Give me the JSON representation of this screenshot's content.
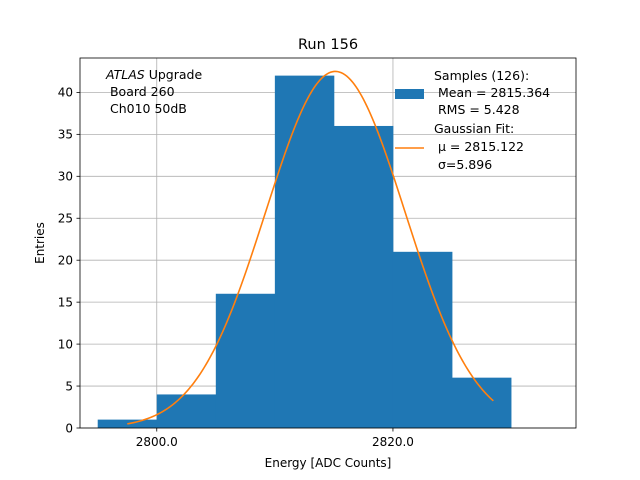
{
  "chart_data": {
    "type": "bar",
    "title": "Run 156",
    "xlabel": "Energy [ADC Counts]",
    "ylabel": "Entries",
    "xlim": [
      2793.5,
      2835.5
    ],
    "ylim": [
      0,
      44.1
    ],
    "grid": true,
    "x_ticks": [
      {
        "value": 2800,
        "label": "2800.0"
      },
      {
        "value": 2820,
        "label": "2820.0"
      }
    ],
    "y_ticks": [
      {
        "value": 0,
        "label": "0"
      },
      {
        "value": 5,
        "label": "5"
      },
      {
        "value": 10,
        "label": "10"
      },
      {
        "value": 15,
        "label": "15"
      },
      {
        "value": 20,
        "label": "20"
      },
      {
        "value": 25,
        "label": "25"
      },
      {
        "value": 30,
        "label": "30"
      },
      {
        "value": 35,
        "label": "35"
      },
      {
        "value": 40,
        "label": "40"
      }
    ],
    "bins": [
      {
        "x0": 2795,
        "x1": 2800,
        "count": 1
      },
      {
        "x0": 2800,
        "x1": 2805,
        "count": 4
      },
      {
        "x0": 2805,
        "x1": 2810,
        "count": 16
      },
      {
        "x0": 2810,
        "x1": 2815,
        "count": 42
      },
      {
        "x0": 2815,
        "x1": 2820,
        "count": 36
      },
      {
        "x0": 2820,
        "x1": 2825,
        "count": 21
      },
      {
        "x0": 2825,
        "x1": 2830,
        "count": 6
      }
    ],
    "fit": {
      "type": "gaussian",
      "mu": 2815.122,
      "sigma": 5.896,
      "amplitude": 42.5,
      "x_range": [
        2797.5,
        2828.5
      ]
    },
    "series_colors": {
      "histogram": "#1f77b4",
      "fit": "#ff7f0e"
    },
    "legend": {
      "position": "top-right",
      "histogram_lines": [
        "Samples (126):",
        " Mean = 2815.364",
        " RMS = 5.428"
      ],
      "fit_lines": [
        "Gaussian Fit:",
        " μ = 2815.122",
        " σ=5.896"
      ]
    },
    "annotation": {
      "line1_italic": "ATLAS",
      "line1_rest": " Upgrade",
      "line2": " Board 260",
      "line3": " Ch010 50dB"
    }
  }
}
